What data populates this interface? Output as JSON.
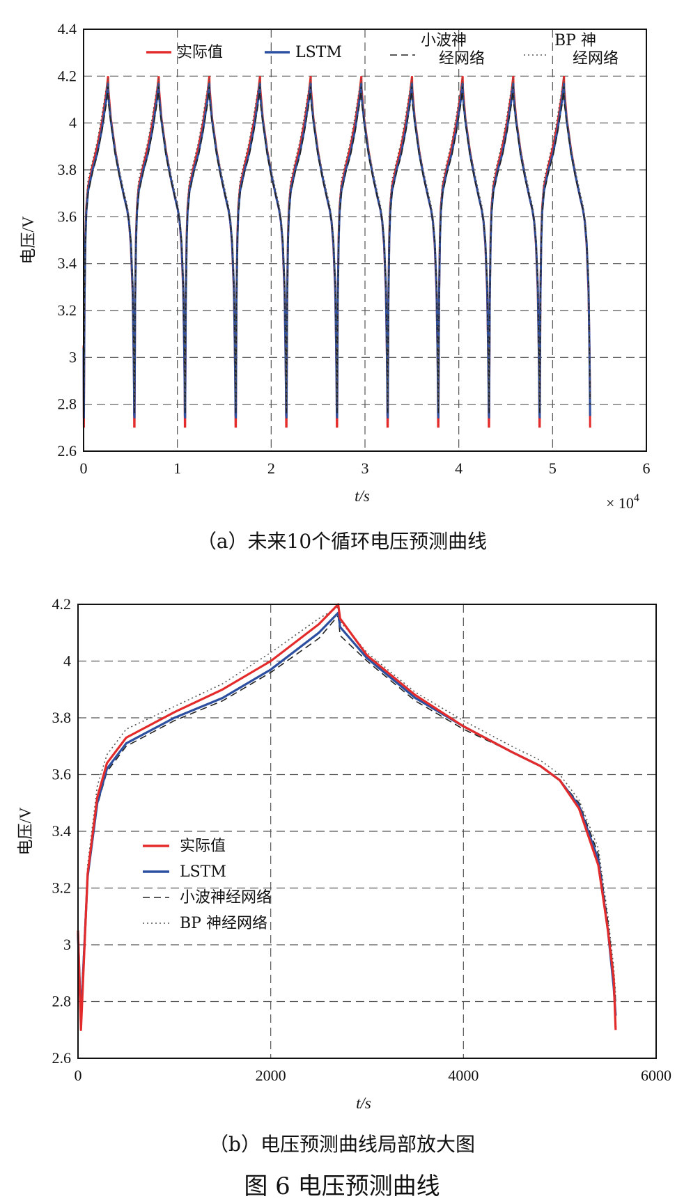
{
  "figure": {
    "caption_a": "（a）未来10个循环电压预测曲线",
    "caption_b": "（b）电压预测曲线局部放大图",
    "caption_fig": "图 6   电压预测曲线"
  },
  "chart_data": [
    {
      "type": "line",
      "xlabel": "t/s",
      "ylabel": "电压/V",
      "x_multiplier_label": "× 10",
      "x_multiplier_exp": "4",
      "xlim": [
        0,
        60000
      ],
      "ylim": [
        2.6,
        4.4
      ],
      "xticks": [
        0,
        10000,
        20000,
        30000,
        40000,
        50000,
        60000
      ],
      "xtick_labels": [
        "0",
        "1",
        "2",
        "3",
        "4",
        "5",
        "6"
      ],
      "yticks": [
        2.6,
        2.8,
        3.0,
        3.2,
        3.4,
        3.6,
        3.8,
        4.0,
        4.2,
        4.4
      ],
      "ytick_labels": [
        "2.6",
        "2.8",
        "3",
        "3.2",
        "3.4",
        "3.6",
        "3.8",
        "4",
        "4.2",
        "4.4"
      ],
      "grid": true,
      "legend": "top",
      "cycles": {
        "count": 10,
        "starts": [
          0,
          5400,
          10800,
          16200,
          21600,
          27000,
          32400,
          37800,
          43200,
          48600
        ],
        "peak_offset": 2700,
        "cycle_length": 5400
      },
      "series": [
        {
          "name": "实际值",
          "color": "#e32b2b",
          "style": "solid"
        },
        {
          "name": "LSTM",
          "color": "#2c4fa0",
          "style": "solid"
        },
        {
          "name": "小波神经网络",
          "color": "#222222",
          "style": "dashed"
        },
        {
          "name": "BP 神经网络",
          "color": "#555555",
          "style": "dotted"
        }
      ]
    },
    {
      "type": "line",
      "xlabel": "t/s",
      "ylabel": "电压/V",
      "xlim": [
        0,
        6000
      ],
      "ylim": [
        2.6,
        4.2
      ],
      "xticks": [
        0,
        2000,
        4000,
        6000
      ],
      "xtick_labels": [
        "0",
        "2000",
        "4000",
        "6000"
      ],
      "yticks": [
        2.6,
        2.8,
        3.0,
        3.2,
        3.4,
        3.6,
        3.8,
        4.0,
        4.2
      ],
      "ytick_labels": [
        "2.6",
        "2.8",
        "3",
        "3.2",
        "3.4",
        "3.6",
        "3.8",
        "4",
        "4.2"
      ],
      "grid": true,
      "legend": "middle-left",
      "series": [
        {
          "name": "实际值",
          "color": "#e32b2b",
          "style": "solid",
          "x": [
            0,
            30,
            100,
            200,
            300,
            500,
            1000,
            1500,
            2000,
            2500,
            2700,
            2720,
            3000,
            3500,
            4000,
            4500,
            4800,
            5000,
            5200,
            5400,
            5500,
            5560,
            5580
          ],
          "y": [
            3.05,
            2.7,
            3.25,
            3.52,
            3.64,
            3.73,
            3.82,
            3.9,
            4.0,
            4.13,
            4.2,
            4.15,
            4.02,
            3.88,
            3.77,
            3.68,
            3.63,
            3.58,
            3.48,
            3.28,
            3.05,
            2.88,
            2.7
          ]
        },
        {
          "name": "LSTM",
          "color": "#2c4fa0",
          "style": "solid",
          "x": [
            0,
            30,
            100,
            200,
            300,
            500,
            1000,
            1500,
            2000,
            2500,
            2700,
            2720,
            3000,
            3500,
            4000,
            4500,
            4800,
            5000,
            5200,
            5400,
            5500,
            5560,
            5580
          ],
          "y": [
            3.04,
            2.74,
            3.24,
            3.5,
            3.62,
            3.71,
            3.8,
            3.87,
            3.97,
            4.1,
            4.17,
            4.12,
            4.01,
            3.87,
            3.77,
            3.68,
            3.63,
            3.58,
            3.49,
            3.3,
            3.05,
            2.85,
            2.75
          ]
        },
        {
          "name": "小波神经网络",
          "color": "#222222",
          "style": "dashed",
          "x": [
            0,
            30,
            100,
            200,
            300,
            500,
            1000,
            1500,
            2000,
            2500,
            2700,
            2720,
            3000,
            3500,
            4000,
            4500,
            4800,
            5000,
            5200,
            5400,
            5500,
            5560,
            5580
          ],
          "y": [
            3.03,
            2.76,
            3.23,
            3.49,
            3.61,
            3.7,
            3.79,
            3.86,
            3.96,
            4.08,
            4.16,
            4.09,
            4.0,
            3.86,
            3.76,
            3.68,
            3.63,
            3.58,
            3.5,
            3.32,
            3.08,
            2.9,
            2.8
          ]
        },
        {
          "name": "BP 神经网络",
          "color": "#555555",
          "style": "dotted",
          "x": [
            0,
            30,
            100,
            200,
            300,
            500,
            1000,
            1500,
            2000,
            2500,
            2700,
            2720,
            3000,
            3500,
            4000,
            4500,
            4800,
            5000,
            5200,
            5400,
            5500,
            5560,
            5580
          ],
          "y": [
            3.06,
            2.78,
            3.28,
            3.56,
            3.67,
            3.76,
            3.84,
            3.92,
            4.03,
            4.15,
            4.19,
            4.14,
            4.03,
            3.89,
            3.79,
            3.7,
            3.65,
            3.6,
            3.51,
            3.34,
            3.1,
            2.92,
            2.82
          ]
        }
      ]
    }
  ]
}
